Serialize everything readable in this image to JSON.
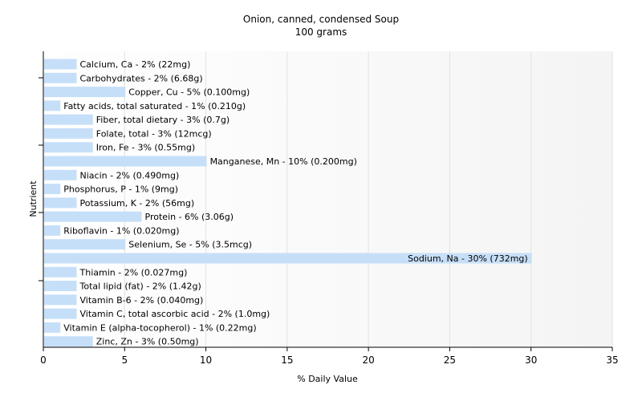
{
  "chart_data": {
    "type": "bar",
    "orientation": "horizontal",
    "title": "Onion, canned, condensed Soup",
    "subtitle": "100 grams",
    "xlabel": "% Daily Value",
    "ylabel": "Nutrient",
    "xlim": [
      0,
      35
    ],
    "xticks": [
      0,
      5,
      10,
      15,
      20,
      25,
      30,
      35
    ],
    "grid": true,
    "bar_color": "#c6dff9",
    "categories": [
      "Calcium, Ca",
      "Carbohydrates",
      "Copper, Cu",
      "Fatty acids, total saturated",
      "Fiber, total dietary",
      "Folate, total",
      "Iron, Fe",
      "Manganese, Mn",
      "Niacin",
      "Phosphorus, P",
      "Potassium, K",
      "Protein",
      "Riboflavin",
      "Selenium, Se",
      "Sodium, Na",
      "Thiamin",
      "Total lipid (fat)",
      "Vitamin B-6",
      "Vitamin C, total ascorbic acid",
      "Vitamin E (alpha-tocopherol)",
      "Zinc, Zn"
    ],
    "values": [
      2,
      2,
      5,
      1,
      3,
      3,
      3,
      10,
      2,
      1,
      2,
      6,
      1,
      5,
      30,
      2,
      2,
      2,
      2,
      1,
      3
    ],
    "labels": [
      "Calcium, Ca - 2% (22mg)",
      "Carbohydrates - 2% (6.68g)",
      "Copper, Cu - 5% (0.100mg)",
      "Fatty acids, total saturated - 1% (0.210g)",
      "Fiber, total dietary - 3% (0.7g)",
      "Folate, total - 3% (12mcg)",
      "Iron, Fe - 3% (0.55mg)",
      "Manganese, Mn - 10% (0.200mg)",
      "Niacin - 2% (0.490mg)",
      "Phosphorus, P - 1% (9mg)",
      "Potassium, K - 2% (56mg)",
      "Protein - 6% (3.06g)",
      "Riboflavin - 1% (0.020mg)",
      "Selenium, Se - 5% (3.5mcg)",
      "Sodium, Na - 30% (732mg)",
      "Thiamin - 2% (0.027mg)",
      "Total lipid (fat) - 2% (1.42g)",
      "Vitamin B-6 - 2% (0.040mg)",
      "Vitamin C, total ascorbic acid - 2% (1.0mg)",
      "Vitamin E (alpha-tocopherol) - 1% (0.22mg)",
      "Zinc, Zn - 3% (0.50mg)"
    ]
  }
}
